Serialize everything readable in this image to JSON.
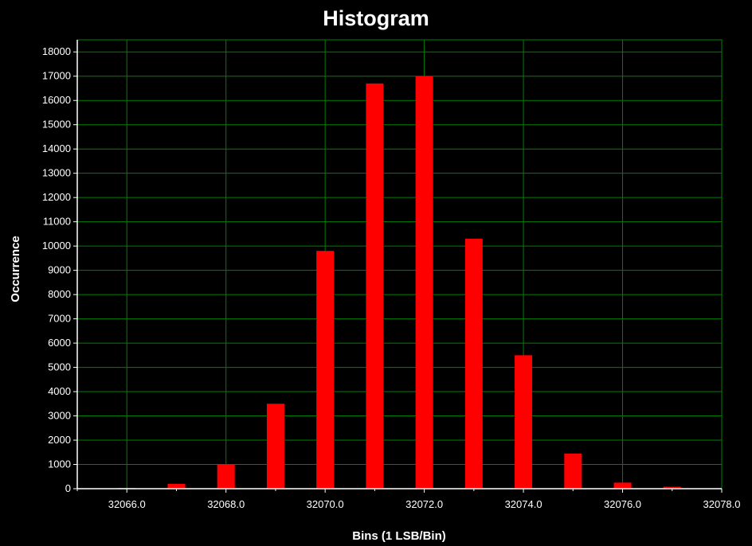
{
  "chart_data": {
    "type": "bar",
    "title": "Histogram",
    "xlabel": "Bins (1 LSB/Bin)",
    "ylabel": "Occurrence",
    "xlim": [
      32065,
      32078
    ],
    "ylim": [
      0,
      18500
    ],
    "x_ticks": [
      "32066.0",
      "32068.0",
      "32070.0",
      "32072.0",
      "32074.0",
      "32076.0",
      "32078.0"
    ],
    "y_ticks": [
      "0",
      "1000",
      "2000",
      "3000",
      "4000",
      "5000",
      "6000",
      "7000",
      "8000",
      "9000",
      "10000",
      "11000",
      "12000",
      "13000",
      "14000",
      "15000",
      "16000",
      "17000",
      "18000"
    ],
    "x": [
      32065,
      32066,
      32067,
      32068,
      32069,
      32070,
      32071,
      32072,
      32073,
      32074,
      32075,
      32076,
      32077,
      32078
    ],
    "values": [
      20,
      30,
      200,
      1000,
      3500,
      9800,
      16700,
      17000,
      10300,
      5500,
      1450,
      250,
      80,
      20
    ],
    "grid": true,
    "colors": {
      "bar": "#ff0000",
      "grid": "#008000",
      "background": "#000000",
      "text": "#ffffff"
    }
  }
}
